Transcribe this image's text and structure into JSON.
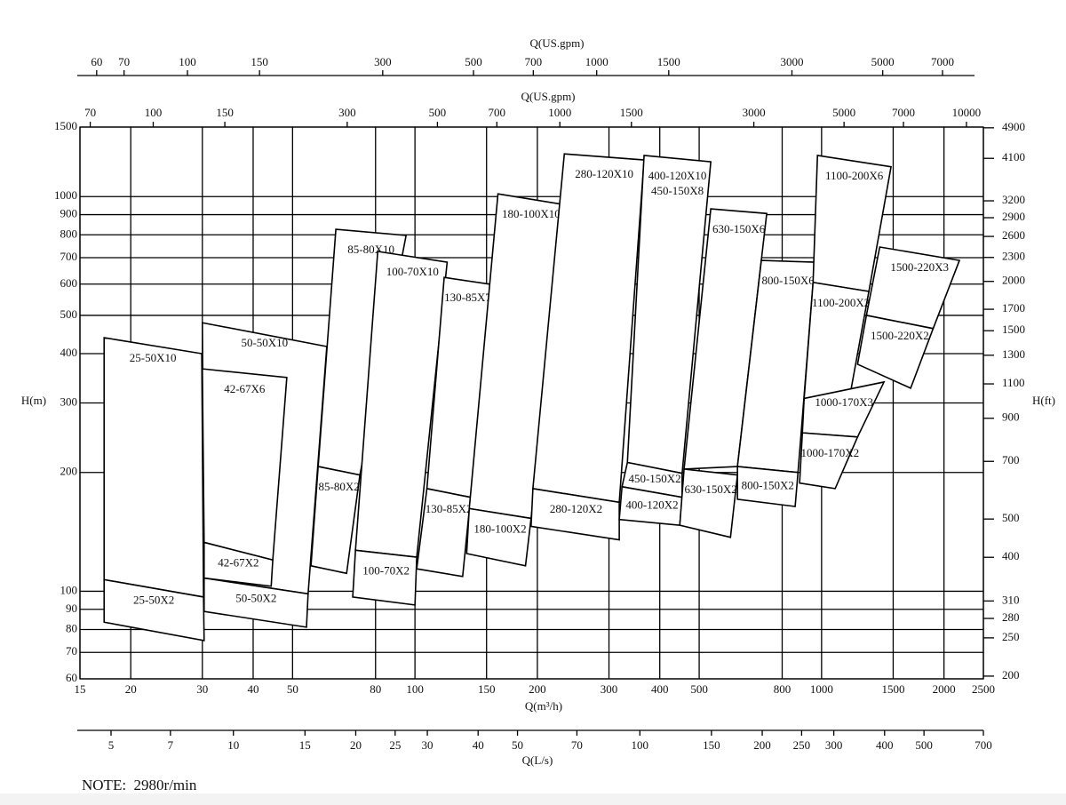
{
  "chart_data": {
    "type": "region",
    "log_x": true,
    "log_y": true,
    "grid": true,
    "xlabel": "Q(m³/h)",
    "xlim": [
      15,
      2500
    ],
    "xticks": [
      15,
      20,
      30,
      40,
      50,
      80,
      100,
      150,
      200,
      300,
      400,
      500,
      800,
      1000,
      1500,
      2000,
      2500
    ],
    "ylabel": "H(m)",
    "ylim": [
      60,
      1500
    ],
    "yticks": [
      60,
      70,
      80,
      90,
      100,
      200,
      300,
      400,
      500,
      600,
      700,
      800,
      900,
      1000,
      1500
    ],
    "y2label": "H(ft)",
    "y2lim": [
      196.85,
      4921.2
    ],
    "y2ticks": [
      200,
      250,
      280,
      310,
      400,
      500,
      700,
      900,
      1100,
      1300,
      1500,
      1700,
      2000,
      2300,
      2600,
      2900,
      3200,
      4100,
      4900
    ],
    "x2label": "Q(US.gpm)",
    "x2lim": [
      66.04,
      11007
    ],
    "x2ticks": [
      70,
      100,
      150,
      300,
      500,
      700,
      1000,
      1500,
      3000,
      5000,
      7000,
      10000
    ],
    "x3label": "Q(US.gpm)",
    "x3lim": [
      53.8,
      8380
    ],
    "x3ticks": [
      60,
      70,
      100,
      150,
      300,
      500,
      700,
      1000,
      1500,
      3000,
      5000,
      7000
    ],
    "x4label": "Q(L/s)",
    "x4lim": [
      4.13,
      700
    ],
    "x4ticks": [
      5,
      7,
      10,
      15,
      20,
      25,
      30,
      40,
      50,
      70,
      100,
      150,
      200,
      250,
      300,
      400,
      500,
      700
    ],
    "regions": [
      {
        "labels": [
          "25-50X10"
        ],
        "points": [
          [
            17.2,
            439
          ],
          [
            29.9,
            400
          ],
          [
            30.2,
            96.7
          ],
          [
            17.2,
            107
          ]
        ]
      },
      {
        "labels": [
          "25-50X2"
        ],
        "points": [
          [
            17.2,
            107
          ],
          [
            30.2,
            96.7
          ],
          [
            30.3,
            75
          ],
          [
            17.2,
            83.5
          ]
        ]
      },
      {
        "labels": [
          "50-50X10"
        ],
        "points": [
          [
            30.0,
            479
          ],
          [
            60.7,
            417
          ],
          [
            54.6,
            98.5
          ],
          [
            30.3,
            108
          ]
        ]
      },
      {
        "labels": [
          "50-50X2"
        ],
        "points": [
          [
            30.3,
            108
          ],
          [
            54.6,
            98.5
          ],
          [
            54.1,
            81.1
          ],
          [
            30.3,
            88.9
          ]
        ]
      },
      {
        "labels": [
          "42-67X6"
        ],
        "points": [
          [
            30.0,
            366
          ],
          [
            48.4,
            348
          ],
          [
            44.7,
            120
          ],
          [
            30.3,
            133
          ]
        ]
      },
      {
        "labels": [
          "42-67X2"
        ],
        "points": [
          [
            30.3,
            133
          ],
          [
            44.7,
            120
          ],
          [
            44.3,
            103
          ],
          [
            30.3,
            108
          ]
        ]
      },
      {
        "labels": [
          "85-80X10"
        ],
        "points": [
          [
            63.9,
            826
          ],
          [
            95.1,
            797
          ],
          [
            73.2,
            197
          ],
          [
            57.8,
            207
          ]
        ]
      },
      {
        "labels": [
          "85-80X2"
        ],
        "points": [
          [
            57.8,
            207
          ],
          [
            73.2,
            197
          ],
          [
            67.9,
            111
          ],
          [
            55.5,
            116
          ]
        ]
      },
      {
        "labels": [
          "100-70X10"
        ],
        "points": [
          [
            81,
            726
          ],
          [
            120,
            682
          ],
          [
            101,
            122
          ],
          [
            71.4,
            127
          ]
        ]
      },
      {
        "labels": [
          "100-70X2"
        ],
        "points": [
          [
            71.4,
            127
          ],
          [
            101,
            122
          ],
          [
            100,
            92.3
          ],
          [
            70.3,
            96.7
          ]
        ]
      },
      {
        "labels": [
          "130-85X7"
        ],
        "points": [
          [
            118,
            624
          ],
          [
            154,
            599
          ],
          [
            137,
            173
          ],
          [
            107,
            182
          ]
        ]
      },
      {
        "labels": [
          "130-85X2"
        ],
        "points": [
          [
            107,
            182
          ],
          [
            137,
            173
          ],
          [
            131,
            109
          ],
          [
            101,
            114
          ]
        ]
      },
      {
        "labels": [
          "180-100X10"
        ],
        "points": [
          [
            160,
            1016
          ],
          [
            233,
            954
          ],
          [
            193,
            153
          ],
          [
            136,
            162
          ]
        ]
      },
      {
        "labels": [
          "180-100X2"
        ],
        "points": [
          [
            136,
            162
          ],
          [
            193,
            153
          ],
          [
            187,
            116
          ],
          [
            134,
            124.6
          ]
        ]
      },
      {
        "labels": [
          "280-120X10"
        ],
        "points": [
          [
            233,
            1283
          ],
          [
            366,
            1238
          ],
          [
            318,
            168
          ],
          [
            195,
            182
          ]
        ]
      },
      {
        "labels": [
          "280-120X2"
        ],
        "points": [
          [
            195,
            182
          ],
          [
            318,
            168
          ],
          [
            318,
            135
          ],
          [
            193,
            146
          ]
        ]
      },
      {
        "labels": [
          "400-120X10",
          "450-150X8"
        ],
        "points": [
          [
            366,
            1271
          ],
          [
            534,
            1225
          ],
          [
            454,
            199
          ],
          [
            333,
            212
          ]
        ]
      },
      {
        "labels": [
          "450-150X2"
        ],
        "points": [
          [
            333,
            212
          ],
          [
            454,
            199
          ],
          [
            454,
            173
          ],
          [
            323,
            184
          ]
        ]
      },
      {
        "labels": [
          "400-120X2"
        ],
        "points": [
          [
            323,
            184
          ],
          [
            454,
            173
          ],
          [
            448,
            147
          ],
          [
            318,
            152
          ]
        ]
      },
      {
        "labels": [
          "630-150X6"
        ],
        "points": [
          [
            534,
            931
          ],
          [
            733,
            906
          ],
          [
            621,
            207
          ],
          [
            459,
            204
          ]
        ]
      },
      {
        "labels": [
          "630-150X2"
        ],
        "points": [
          [
            459,
            204
          ],
          [
            621,
            197
          ],
          [
            597,
            137
          ],
          [
            448,
            147
          ]
        ]
      },
      {
        "labels": [
          "800-150X6"
        ],
        "points": [
          [
            711,
            689
          ],
          [
            962,
            682
          ],
          [
            875,
            200
          ],
          [
            621,
            207
          ]
        ]
      },
      {
        "labels": [
          "800-150X2"
        ],
        "points": [
          [
            621,
            207
          ],
          [
            875,
            200
          ],
          [
            861,
            164
          ],
          [
            621,
            171
          ]
        ]
      },
      {
        "labels": [
          "1100-200X6"
        ],
        "points": [
          [
            977,
            1271
          ],
          [
            1482,
            1190
          ],
          [
            1307,
            575
          ],
          [
            953,
            606
          ]
        ]
      },
      {
        "labels": [
          "1100-200X2"
        ],
        "points": [
          [
            953,
            606
          ],
          [
            1307,
            575
          ],
          [
            1164,
            298
          ],
          [
            906,
            308
          ]
        ]
      },
      {
        "labels": [
          "1000-170X3"
        ],
        "points": [
          [
            906,
            308
          ],
          [
            1424,
            339
          ],
          [
            1226,
            246
          ],
          [
            897,
            252
          ]
        ]
      },
      {
        "labels": [
          "1000-170X2"
        ],
        "points": [
          [
            897,
            252
          ],
          [
            1226,
            246
          ],
          [
            1080,
            182
          ],
          [
            883,
            188
          ]
        ]
      },
      {
        "labels": [
          "1500-220X3"
        ],
        "points": [
          [
            1390,
            745
          ],
          [
            2183,
            689
          ],
          [
            1881,
            463
          ],
          [
            1289,
            500
          ]
        ]
      },
      {
        "labels": [
          "1500-220X2"
        ],
        "points": [
          [
            1289,
            500
          ],
          [
            1881,
            463
          ],
          [
            1656,
            327
          ],
          [
            1226,
            376
          ]
        ]
      }
    ],
    "note": "NOTE:  2980r/min"
  }
}
